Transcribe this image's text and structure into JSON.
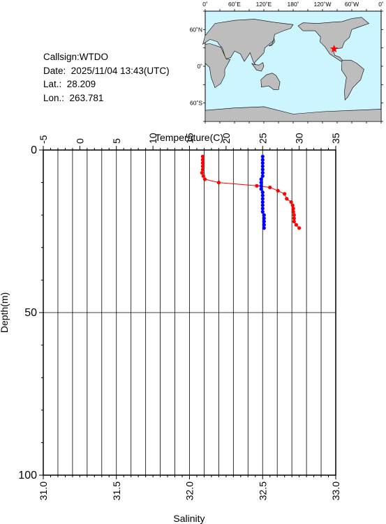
{
  "station": {
    "callsign_label": "Callsign:",
    "callsign": "WTDO",
    "date_label": "Date:",
    "date": "2025/11/04 13:43(UTC)",
    "lat_label": "Lat.:",
    "lat": "28.209",
    "lon_label": "Lon.:",
    "lon": "263.781"
  },
  "map": {
    "top_labels": [
      "0˚",
      "60˚E",
      "120˚E",
      "180˚",
      "120˚W",
      "60˚W",
      "0˚"
    ],
    "lat_labels": [
      "60˚N",
      "0˚",
      "60˚S"
    ],
    "ocean_color": "#ccf5ff",
    "land_color": "#bdbdbd",
    "marker_color": "#ff0000",
    "marker_icon": "star-icon"
  },
  "chart_data": {
    "type": "scatter",
    "title": "",
    "top_axis": {
      "label": "Temperature(C)",
      "range": [
        -5,
        35
      ],
      "ticks": [
        "-5",
        "0",
        "5",
        "10",
        "15",
        "20",
        "25",
        "30",
        "35"
      ]
    },
    "bottom_axis": {
      "label": "Salinity",
      "range": [
        31.0,
        33.0
      ],
      "ticks": [
        "31.0",
        "31.5",
        "32.0",
        "32.5",
        "33.0"
      ]
    },
    "y_axis": {
      "label": "Depth(m)",
      "range": [
        0,
        100
      ],
      "inverted": true,
      "ticks": [
        "0",
        "50",
        "100"
      ]
    },
    "grid": true,
    "series": [
      {
        "axis": "top",
        "color": "#ff0000",
        "points": [
          {
            "x": 16.8,
            "y": 2
          },
          {
            "x": 16.8,
            "y": 3
          },
          {
            "x": 16.8,
            "y": 4
          },
          {
            "x": 16.8,
            "y": 5
          },
          {
            "x": 16.8,
            "y": 6
          },
          {
            "x": 16.7,
            "y": 7
          },
          {
            "x": 16.9,
            "y": 8
          },
          {
            "x": 17.1,
            "y": 9
          },
          {
            "x": 19.0,
            "y": 10
          },
          {
            "x": 24.2,
            "y": 11
          },
          {
            "x": 26.0,
            "y": 11.5
          },
          {
            "x": 27.1,
            "y": 12.5
          },
          {
            "x": 28.0,
            "y": 13.5
          },
          {
            "x": 28.3,
            "y": 15
          },
          {
            "x": 28.9,
            "y": 16
          },
          {
            "x": 29.1,
            "y": 17
          },
          {
            "x": 29.2,
            "y": 18
          },
          {
            "x": 29.2,
            "y": 19
          },
          {
            "x": 29.3,
            "y": 20
          },
          {
            "x": 29.3,
            "y": 21
          },
          {
            "x": 29.3,
            "y": 22
          },
          {
            "x": 29.6,
            "y": 23
          },
          {
            "x": 30.0,
            "y": 24
          }
        ]
      },
      {
        "axis": "bottom",
        "color": "#0000ff",
        "points": [
          {
            "x": 32.5,
            "y": 2
          },
          {
            "x": 32.5,
            "y": 3
          },
          {
            "x": 32.5,
            "y": 4
          },
          {
            "x": 32.5,
            "y": 5
          },
          {
            "x": 32.5,
            "y": 6
          },
          {
            "x": 32.5,
            "y": 7
          },
          {
            "x": 32.5,
            "y": 8
          },
          {
            "x": 32.49,
            "y": 9
          },
          {
            "x": 32.49,
            "y": 10
          },
          {
            "x": 32.49,
            "y": 11
          },
          {
            "x": 32.49,
            "y": 12
          },
          {
            "x": 32.5,
            "y": 13
          },
          {
            "x": 32.5,
            "y": 14
          },
          {
            "x": 32.5,
            "y": 15
          },
          {
            "x": 32.5,
            "y": 16
          },
          {
            "x": 32.5,
            "y": 17
          },
          {
            "x": 32.5,
            "y": 18
          },
          {
            "x": 32.5,
            "y": 19
          },
          {
            "x": 32.51,
            "y": 20
          },
          {
            "x": 32.51,
            "y": 21
          },
          {
            "x": 32.51,
            "y": 22
          },
          {
            "x": 32.51,
            "y": 23
          },
          {
            "x": 32.51,
            "y": 24
          }
        ]
      }
    ]
  }
}
